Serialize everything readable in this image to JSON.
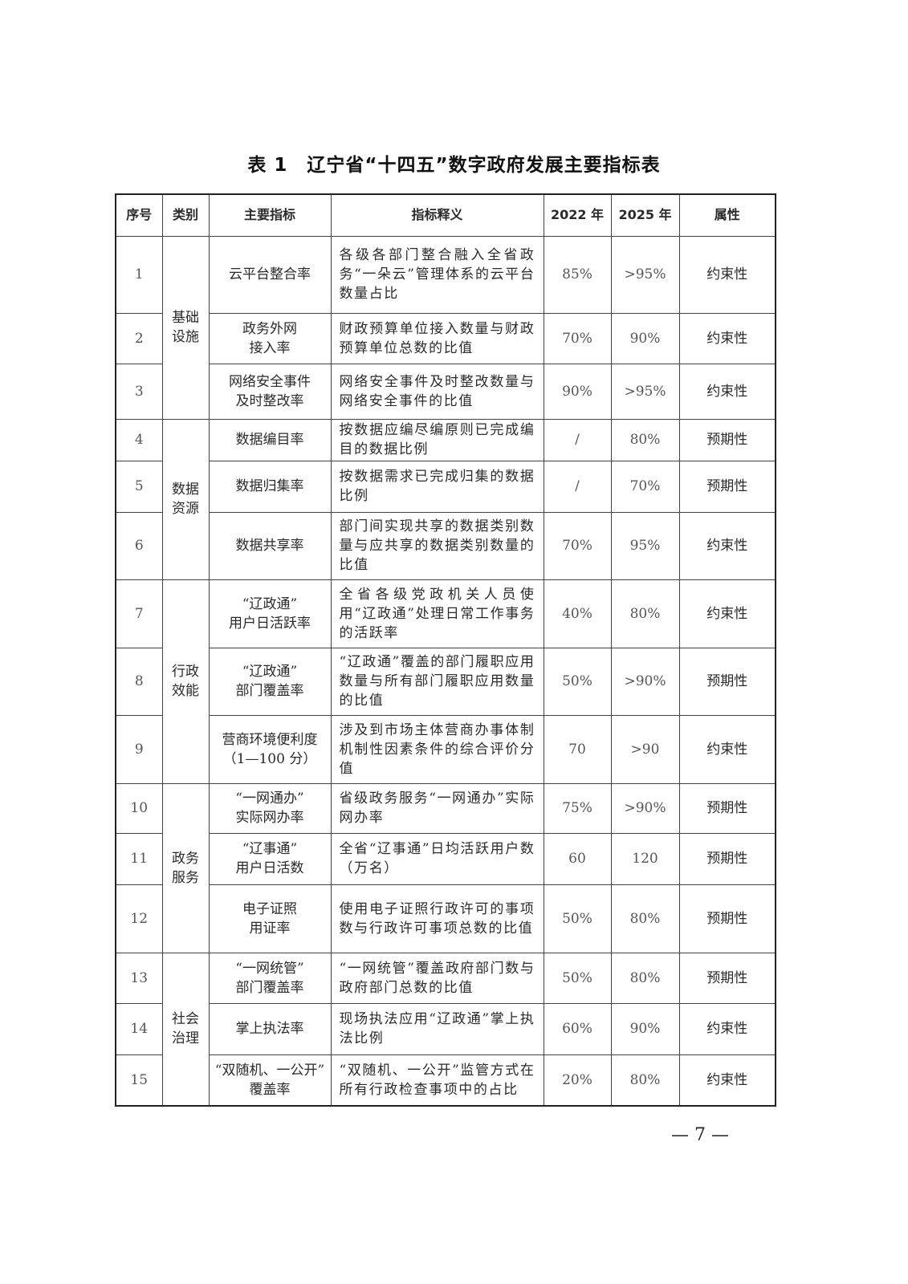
{
  "title": "表 1　辽宁省“十四五”数字政府发展主要指标表",
  "headers": [
    "序号",
    "类别",
    "主要指标",
    "指标释义",
    "2022 年",
    "2025 年",
    "属性"
  ],
  "categories": [
    {
      "label": "基础\n设施",
      "rows": 3
    },
    {
      "label": "数据\n资源",
      "rows": 3
    },
    {
      "label": "行政\n效能",
      "rows": 3
    },
    {
      "label": "政务\n服务",
      "rows": 3
    },
    {
      "label": "社会\n治理",
      "rows": 3
    }
  ],
  "rows": [
    {
      "no": "1",
      "indicator": "云平台整合率",
      "explanation": "各级各部门整合融入全省政务“一朵云”管理体系的云平台数量占比",
      "y2022": "85%",
      "y2025": ">95%",
      "attribute": "约束性"
    },
    {
      "no": "2",
      "indicator": "政务外网\n接入率",
      "explanation": "财政预算单位接入数量与财政预算单位总数的比值",
      "y2022": "70%",
      "y2025": "90%",
      "attribute": "约束性"
    },
    {
      "no": "3",
      "indicator": "网络安全事件\n及时整改率",
      "explanation": "网络安全事件及时整改数量与网络安全事件的比值",
      "y2022": "90%",
      "y2025": ">95%",
      "attribute": "约束性"
    },
    {
      "no": "4",
      "indicator": "数据编目率",
      "explanation": "按数据应编尽编原则已完成编目的数据比例",
      "y2022": "/",
      "y2025": "80%",
      "attribute": "预期性"
    },
    {
      "no": "5",
      "indicator": "数据归集率",
      "explanation": "按数据需求已完成归集的数据比例",
      "y2022": "/",
      "y2025": "70%",
      "attribute": "预期性"
    },
    {
      "no": "6",
      "indicator": "数据共享率",
      "explanation": "部门间实现共享的数据类别数量与应共享的数据类别数量的比值",
      "y2022": "70%",
      "y2025": "95%",
      "attribute": "约束性"
    },
    {
      "no": "7",
      "indicator": "“辽政通”\n用户日活跃率",
      "explanation": "全省各级党政机关人员使用“辽政通”处理日常工作事务的活跃率",
      "y2022": "40%",
      "y2025": "80%",
      "attribute": "约束性"
    },
    {
      "no": "8",
      "indicator": "“辽政通”\n部门覆盖率",
      "explanation": "“辽政通”覆盖的部门履职应用数量与所有部门履职应用数量的比值",
      "y2022": "50%",
      "y2025": ">90%",
      "attribute": "预期性"
    },
    {
      "no": "9",
      "indicator": "营商环境便利度\n（1—100 分）",
      "explanation": "涉及到市场主体营商办事体制机制性因素条件的综合评价分值",
      "y2022": "70",
      "y2025": ">90",
      "attribute": "约束性"
    },
    {
      "no": "10",
      "indicator": "“一网通办”\n实际网办率",
      "explanation": "省级政务服务“一网通办”实际网办率",
      "y2022": "75%",
      "y2025": ">90%",
      "attribute": "预期性"
    },
    {
      "no": "11",
      "indicator": "“辽事通”\n用户日活数",
      "explanation": "全省“辽事通”日均活跃用户数（万名）",
      "y2022": "60",
      "y2025": "120",
      "attribute": "预期性"
    },
    {
      "no": "12",
      "indicator": "电子证照\n用证率",
      "explanation": "使用电子证照行政许可的事项数与行政许可事项总数的比值",
      "y2022": "50%",
      "y2025": "80%",
      "attribute": "预期性"
    },
    {
      "no": "13",
      "indicator": "“一网统管”\n部门覆盖率",
      "explanation": "“一网统管”覆盖政府部门数与政府部门总数的比值",
      "y2022": "50%",
      "y2025": "80%",
      "attribute": "预期性"
    },
    {
      "no": "14",
      "indicator": "掌上执法率",
      "explanation": "现场执法应用“辽政通”掌上执法比例",
      "y2022": "60%",
      "y2025": "90%",
      "attribute": "约束性"
    },
    {
      "no": "15",
      "indicator": "“双随机、一公开”\n覆盖率",
      "explanation": "“双随机、一公开”监管方式在所有行政检查事项中的占比",
      "y2022": "20%",
      "y2025": "80%",
      "attribute": "约束性"
    }
  ],
  "page_number": "— 7 —"
}
